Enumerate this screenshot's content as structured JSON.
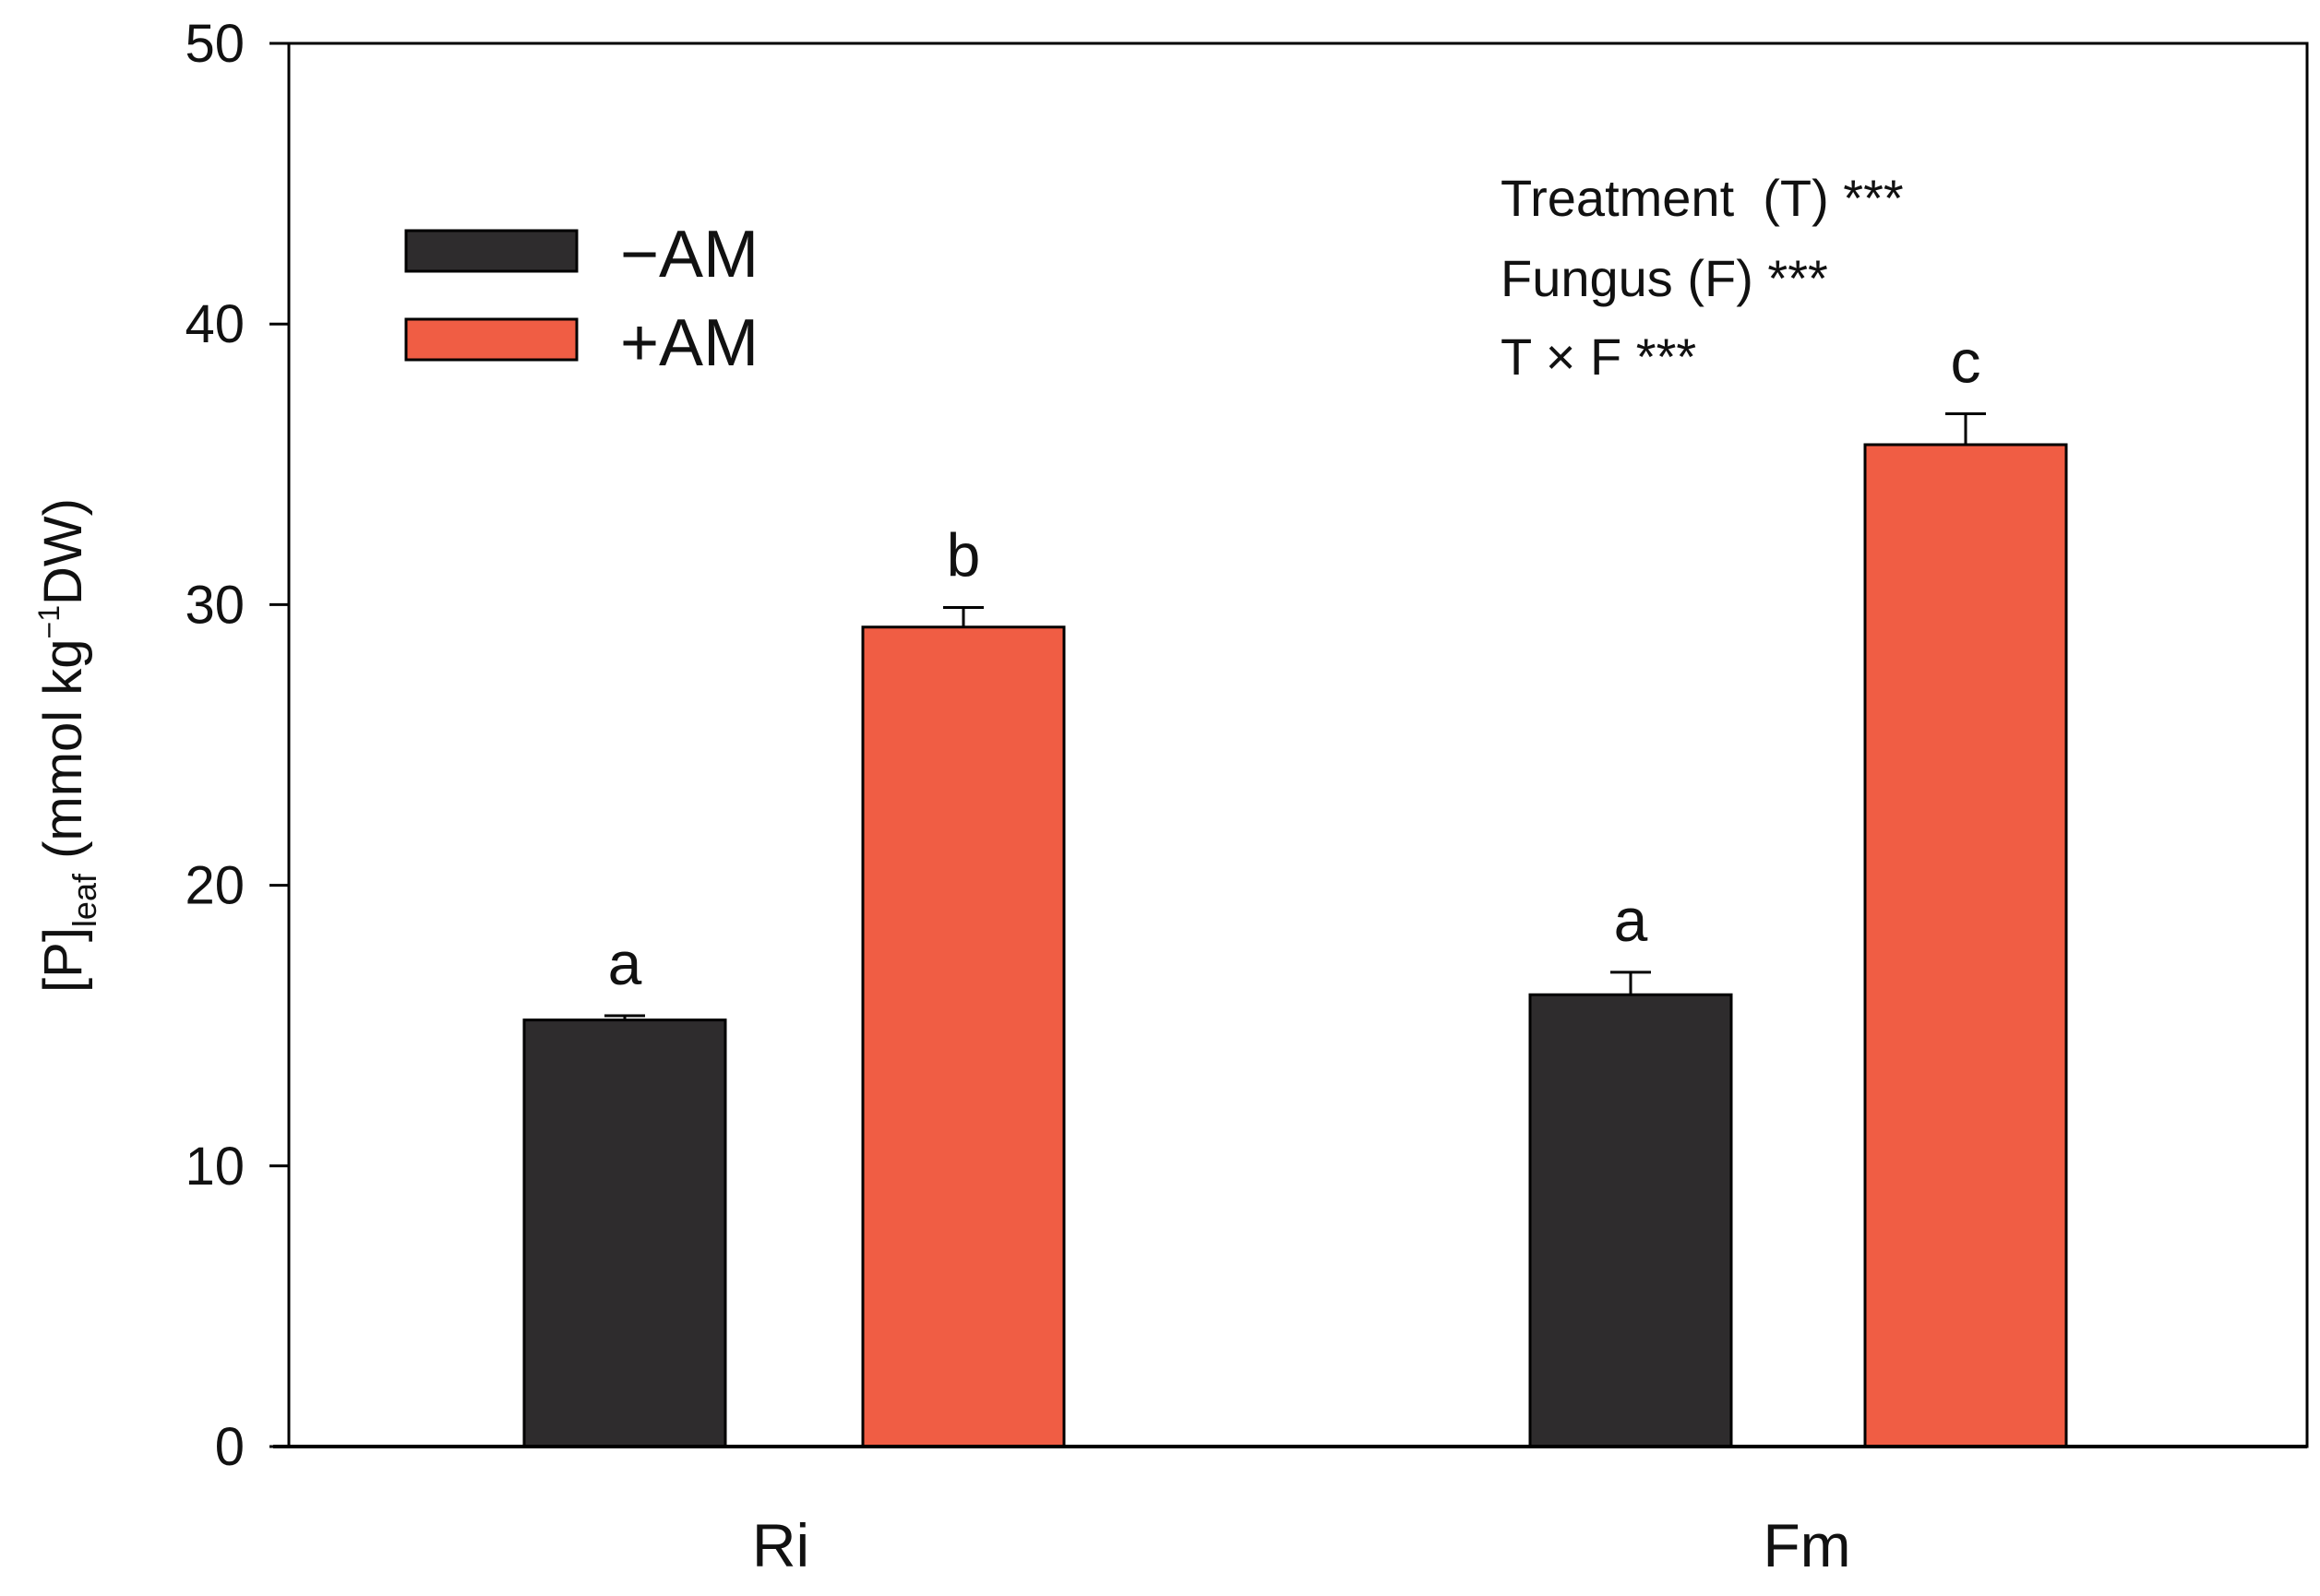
{
  "chart_data": {
    "type": "bar",
    "categories": [
      "Ri",
      "Fm"
    ],
    "series": [
      {
        "name": "−AM",
        "color": "#2e2c2d",
        "values": [
          15.2,
          16.1
        ],
        "errors": [
          0.15,
          0.8
        ],
        "letters": [
          "a",
          "a"
        ]
      },
      {
        "name": "+AM",
        "color": "#f05d44",
        "values": [
          29.2,
          35.7
        ],
        "errors": [
          0.7,
          1.1
        ],
        "letters": [
          "b",
          "c"
        ]
      }
    ],
    "ylim": [
      0,
      50
    ],
    "yticks": [
      "0",
      "10",
      "20",
      "30",
      "40",
      "50"
    ],
    "ylabel": {
      "prefix": "[P]",
      "subscript": "leaf",
      "middle": " (mmol kg",
      "superscript": "−1",
      "suffix": "DW)"
    },
    "xlabel": "",
    "legend_position": "top-left",
    "annotations": [
      "Treatment  (T) ***",
      "Fungus (F) ***",
      "T × F ***"
    ]
  }
}
